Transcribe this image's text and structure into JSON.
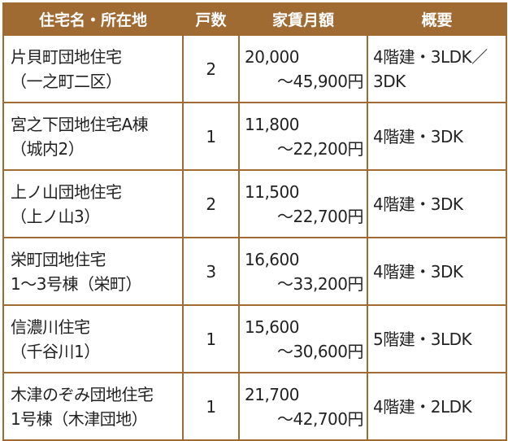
{
  "table": {
    "headers": {
      "name": "住宅名・所在地",
      "units": "戸数",
      "rent": "家賃月額",
      "summary": "概要"
    },
    "rows": [
      {
        "name_line1": "片貝町団地住宅",
        "name_line2": "（一之町二区）",
        "units": "2",
        "rent_from": "20,000",
        "rent_to": "～45,900円",
        "summary": "4階建・3LDK／3DK"
      },
      {
        "name_line1": "宮之下団地住宅A棟",
        "name_line2": "（城内2）",
        "units": "1",
        "rent_from": "11,800",
        "rent_to": "～22,200円",
        "summary": "4階建・3DK"
      },
      {
        "name_line1": "上ノ山団地住宅",
        "name_line2": "（上ノ山3）",
        "units": "2",
        "rent_from": "11,500",
        "rent_to": "～22,700円",
        "summary": "4階建・3DK"
      },
      {
        "name_line1": "栄町団地住宅",
        "name_line2": "1～3号棟（栄町）",
        "units": "3",
        "rent_from": "16,600",
        "rent_to": "～33,200円",
        "summary": "4階建・3DK"
      },
      {
        "name_line1": "信濃川住宅",
        "name_line2": "（千谷川1）",
        "units": "1",
        "rent_from": "15,600",
        "rent_to": "～30,600円",
        "summary": "5階建・3LDK"
      },
      {
        "name_line1": "木津のぞみ団地住宅",
        "name_line2": "1号棟（木津団地）",
        "units": "1",
        "rent_from": "21,700",
        "rent_to": "～42,700円",
        "summary": "4階建・2LDK"
      }
    ]
  },
  "colors": {
    "header_bg": "#a06a33",
    "header_text": "#ffffff",
    "border": "#a06a33"
  }
}
